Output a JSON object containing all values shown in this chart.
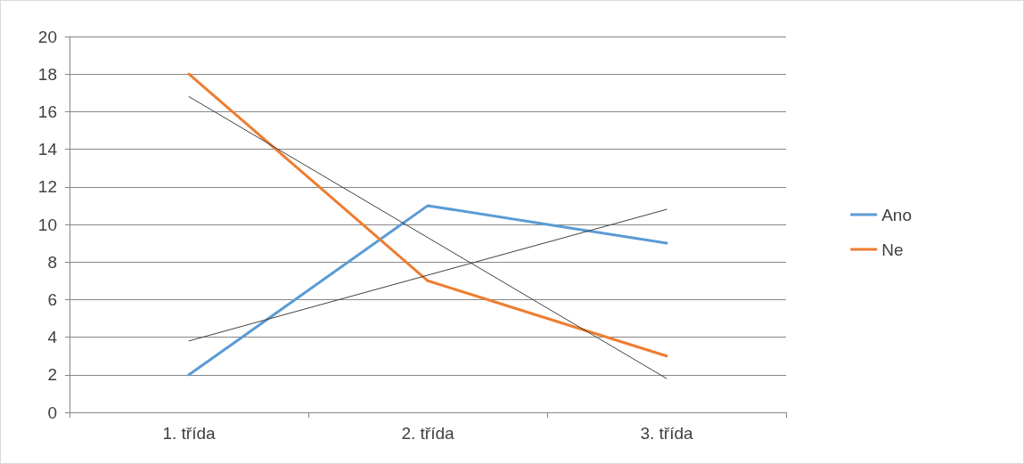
{
  "chart_data": {
    "type": "line",
    "categories": [
      "1. třída",
      "2. třída",
      "3. třída"
    ],
    "series": [
      {
        "name": "Ano",
        "color": "#5b9bd5",
        "values": [
          2,
          11,
          9
        ]
      },
      {
        "name": "Ne",
        "color": "#ed7d31",
        "values": [
          18,
          7,
          3
        ]
      },
      {
        "type": "line",
        "color": "#404040",
        "x": [
          "1. třída",
          "2. třída",
          "3. třída"
        ],
        "values": [
          3.8,
          7.3,
          10.8
        ]
      },
      {
        "type": "line",
        "color": "#404040",
        "x": [
          "1. třída",
          "2. třída",
          "3. třída"
        ],
        "values": [
          16.8,
          9.3,
          1.8
        ]
      }
    ],
    "ylim": [
      0,
      20
    ],
    "yticks": [
      0,
      2,
      4,
      6,
      8,
      10,
      12,
      14,
      16,
      18,
      20
    ],
    "grid": "y",
    "legend": "right",
    "marker": "none",
    "line_style": "solid"
  }
}
